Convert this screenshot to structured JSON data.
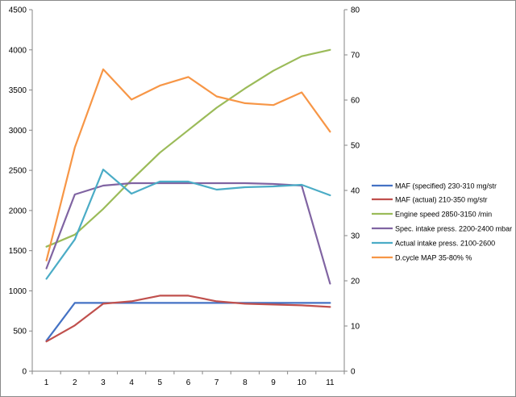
{
  "chart_data": {
    "type": "line",
    "title": "",
    "xlabel": "",
    "ylabel": "",
    "y2label": "",
    "categories": [
      "1",
      "2",
      "3",
      "4",
      "5",
      "6",
      "7",
      "8",
      "9",
      "10",
      "11"
    ],
    "ylim": [
      0,
      4500
    ],
    "y_ticks": [
      0,
      500,
      1000,
      1500,
      2000,
      2500,
      3000,
      3500,
      4000,
      4500
    ],
    "y2lim": [
      0,
      80
    ],
    "y2_ticks": [
      0,
      10,
      20,
      30,
      40,
      50,
      60,
      70,
      80
    ],
    "grid": false,
    "legend_position": "right",
    "series": [
      {
        "name": "MAF (specified) 230-310  mg/str",
        "axis": "left",
        "color": "#4472C4",
        "values": [
          380,
          850,
          850,
          850,
          850,
          850,
          850,
          850,
          850,
          850,
          850
        ]
      },
      {
        "name": "MAF (actual) 210-350  mg/str",
        "axis": "left",
        "color": "#C0504D",
        "values": [
          370,
          570,
          840,
          870,
          940,
          940,
          870,
          840,
          830,
          820,
          800
        ]
      },
      {
        "name": "Engine speed 2850-3150  /min",
        "axis": "left",
        "color": "#9BBB59",
        "values": [
          1550,
          1700,
          2020,
          2380,
          2720,
          3000,
          3280,
          3520,
          3740,
          3920,
          4000
        ]
      },
      {
        "name": "Spec. intake press. 2200-2400  mbar",
        "axis": "left",
        "color": "#8064A2",
        "values": [
          1280,
          2200,
          2310,
          2340,
          2340,
          2340,
          2340,
          2340,
          2330,
          2310,
          1090
        ]
      },
      {
        "name": "Actual intake press. 2100-2600",
        "axis": "left",
        "color": "#4BACC6",
        "values": [
          1150,
          1640,
          2510,
          2210,
          2360,
          2360,
          2260,
          2290,
          2300,
          2320,
          2190
        ]
      },
      {
        "name": "D.cycle MAP 35-80%  %",
        "axis": "right",
        "color": "#F79646",
        "values": [
          24.5,
          49.5,
          66.8,
          60.1,
          63.2,
          65.1,
          60.8,
          59.3,
          58.9,
          61.7,
          53.0
        ]
      }
    ]
  }
}
